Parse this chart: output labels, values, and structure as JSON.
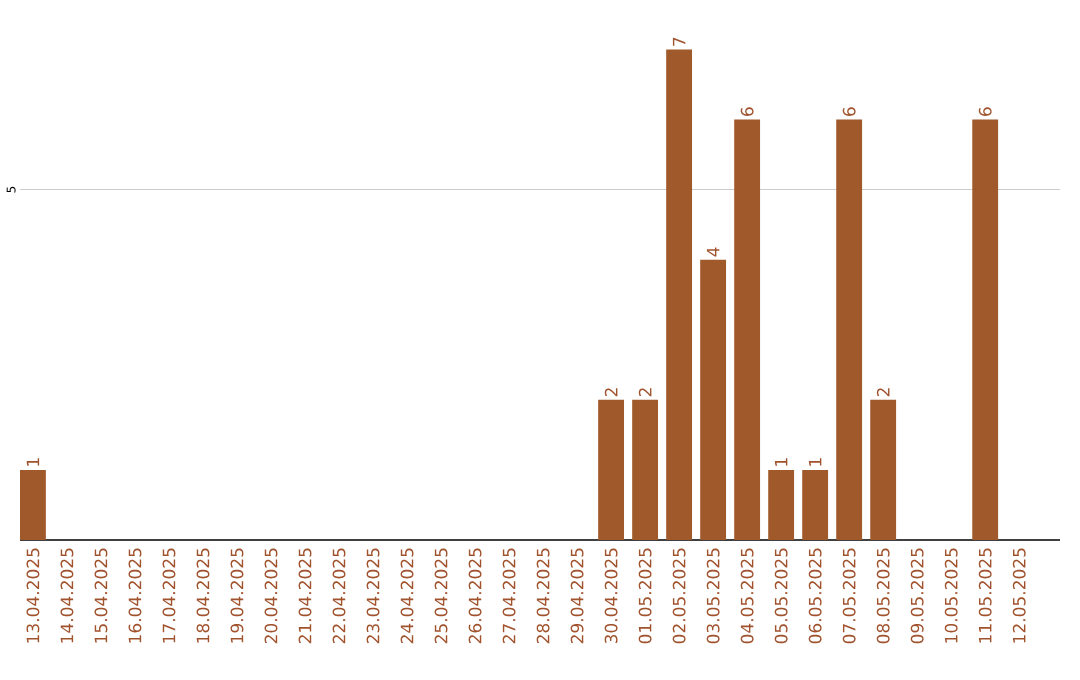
{
  "chart_data": {
    "type": "bar",
    "categories": [
      "13.04.2025",
      "14.04.2025",
      "15.04.2025",
      "16.04.2025",
      "17.04.2025",
      "18.04.2025",
      "19.04.2025",
      "20.04.2025",
      "21.04.2025",
      "22.04.2025",
      "23.04.2025",
      "24.04.2025",
      "25.04.2025",
      "26.04.2025",
      "27.04.2025",
      "28.04.2025",
      "29.04.2025",
      "30.04.2025",
      "01.05.2025",
      "02.05.2025",
      "03.05.2025",
      "04.05.2025",
      "05.05.2025",
      "06.05.2025",
      "07.05.2025",
      "08.05.2025",
      "09.05.2025",
      "10.05.2025",
      "11.05.2025",
      "12.05.2025"
    ],
    "values": [
      1,
      0,
      0,
      0,
      0,
      0,
      0,
      0,
      0,
      0,
      0,
      0,
      0,
      0,
      0,
      0,
      0,
      2,
      2,
      7,
      4,
      6,
      1,
      1,
      6,
      2,
      0,
      0,
      6,
      0
    ],
    "value_labels": [
      "1",
      null,
      null,
      null,
      null,
      null,
      null,
      null,
      null,
      null,
      null,
      null,
      null,
      null,
      null,
      null,
      null,
      "2",
      "2",
      "7",
      "4",
      "6",
      "1",
      "1",
      "6",
      "2",
      null,
      null,
      "6",
      null
    ],
    "color": "#a0592a",
    "ref_lines": [
      {
        "axis": "y",
        "value": 5,
        "label": "5",
        "color": "#cccccc"
      }
    ]
  }
}
